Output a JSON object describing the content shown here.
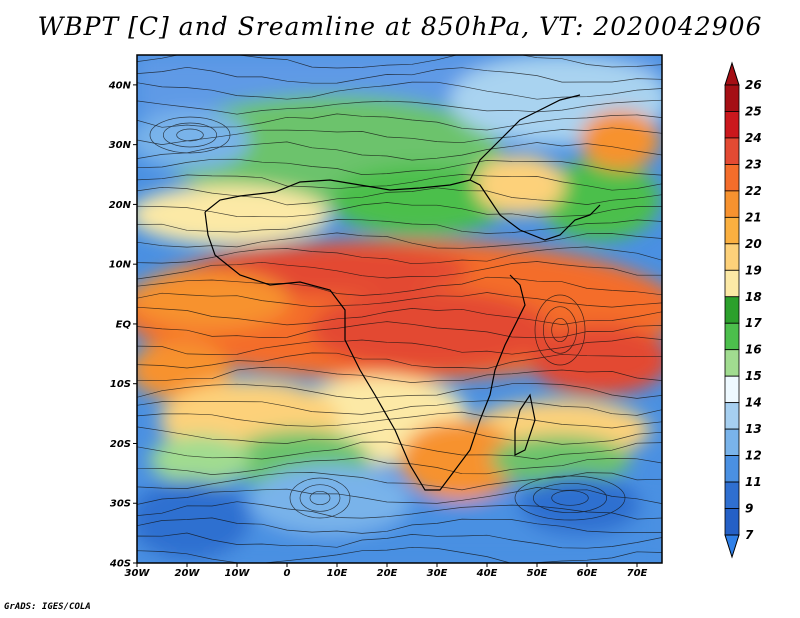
{
  "title": "WBPT [C] and Sreamline at 850hPa, VT: 2020042906",
  "footer": "GrADS: IGES/COLA",
  "map": {
    "lon_range": [
      -30,
      75
    ],
    "lat_range": [
      -40,
      45
    ],
    "lat_ticks": [
      {
        "value": 40,
        "label": "40N"
      },
      {
        "value": 30,
        "label": "30N"
      },
      {
        "value": 20,
        "label": "20N"
      },
      {
        "value": 10,
        "label": "10N"
      },
      {
        "value": 0,
        "label": "EQ"
      },
      {
        "value": -10,
        "label": "10S"
      },
      {
        "value": -20,
        "label": "20S"
      },
      {
        "value": -30,
        "label": "30S"
      },
      {
        "value": -40,
        "label": "40S"
      }
    ],
    "lon_ticks": [
      {
        "value": -30,
        "label": "30W"
      },
      {
        "value": -20,
        "label": "20W"
      },
      {
        "value": -10,
        "label": "10W"
      },
      {
        "value": 0,
        "label": "0"
      },
      {
        "value": 10,
        "label": "10E"
      },
      {
        "value": 20,
        "label": "20E"
      },
      {
        "value": 30,
        "label": "30E"
      },
      {
        "value": 40,
        "label": "40E"
      },
      {
        "value": 50,
        "label": "50E"
      },
      {
        "value": 60,
        "label": "60E"
      },
      {
        "value": 70,
        "label": "70E"
      }
    ]
  },
  "colorbar": {
    "levels": [
      "26",
      "25",
      "24",
      "23",
      "22",
      "21",
      "20",
      "19",
      "18",
      "17",
      "16",
      "15",
      "14",
      "13",
      "12",
      "11",
      "9",
      "7"
    ],
    "colors": [
      "#a50f15",
      "#cb181d",
      "#e34a33",
      "#f46d2b",
      "#f7922f",
      "#fbb040",
      "#fdd17a",
      "#fce9a6",
      "#2ca02c",
      "#4cbf4c",
      "#a1dc90",
      "#eef9ff",
      "#a6cff0",
      "#79b3ea",
      "#4a90e2",
      "#2f6fd0",
      "#2460c6"
    ],
    "arrow_top_color": "#a50f15",
    "arrow_bottom_color": "#2f80e8"
  }
}
